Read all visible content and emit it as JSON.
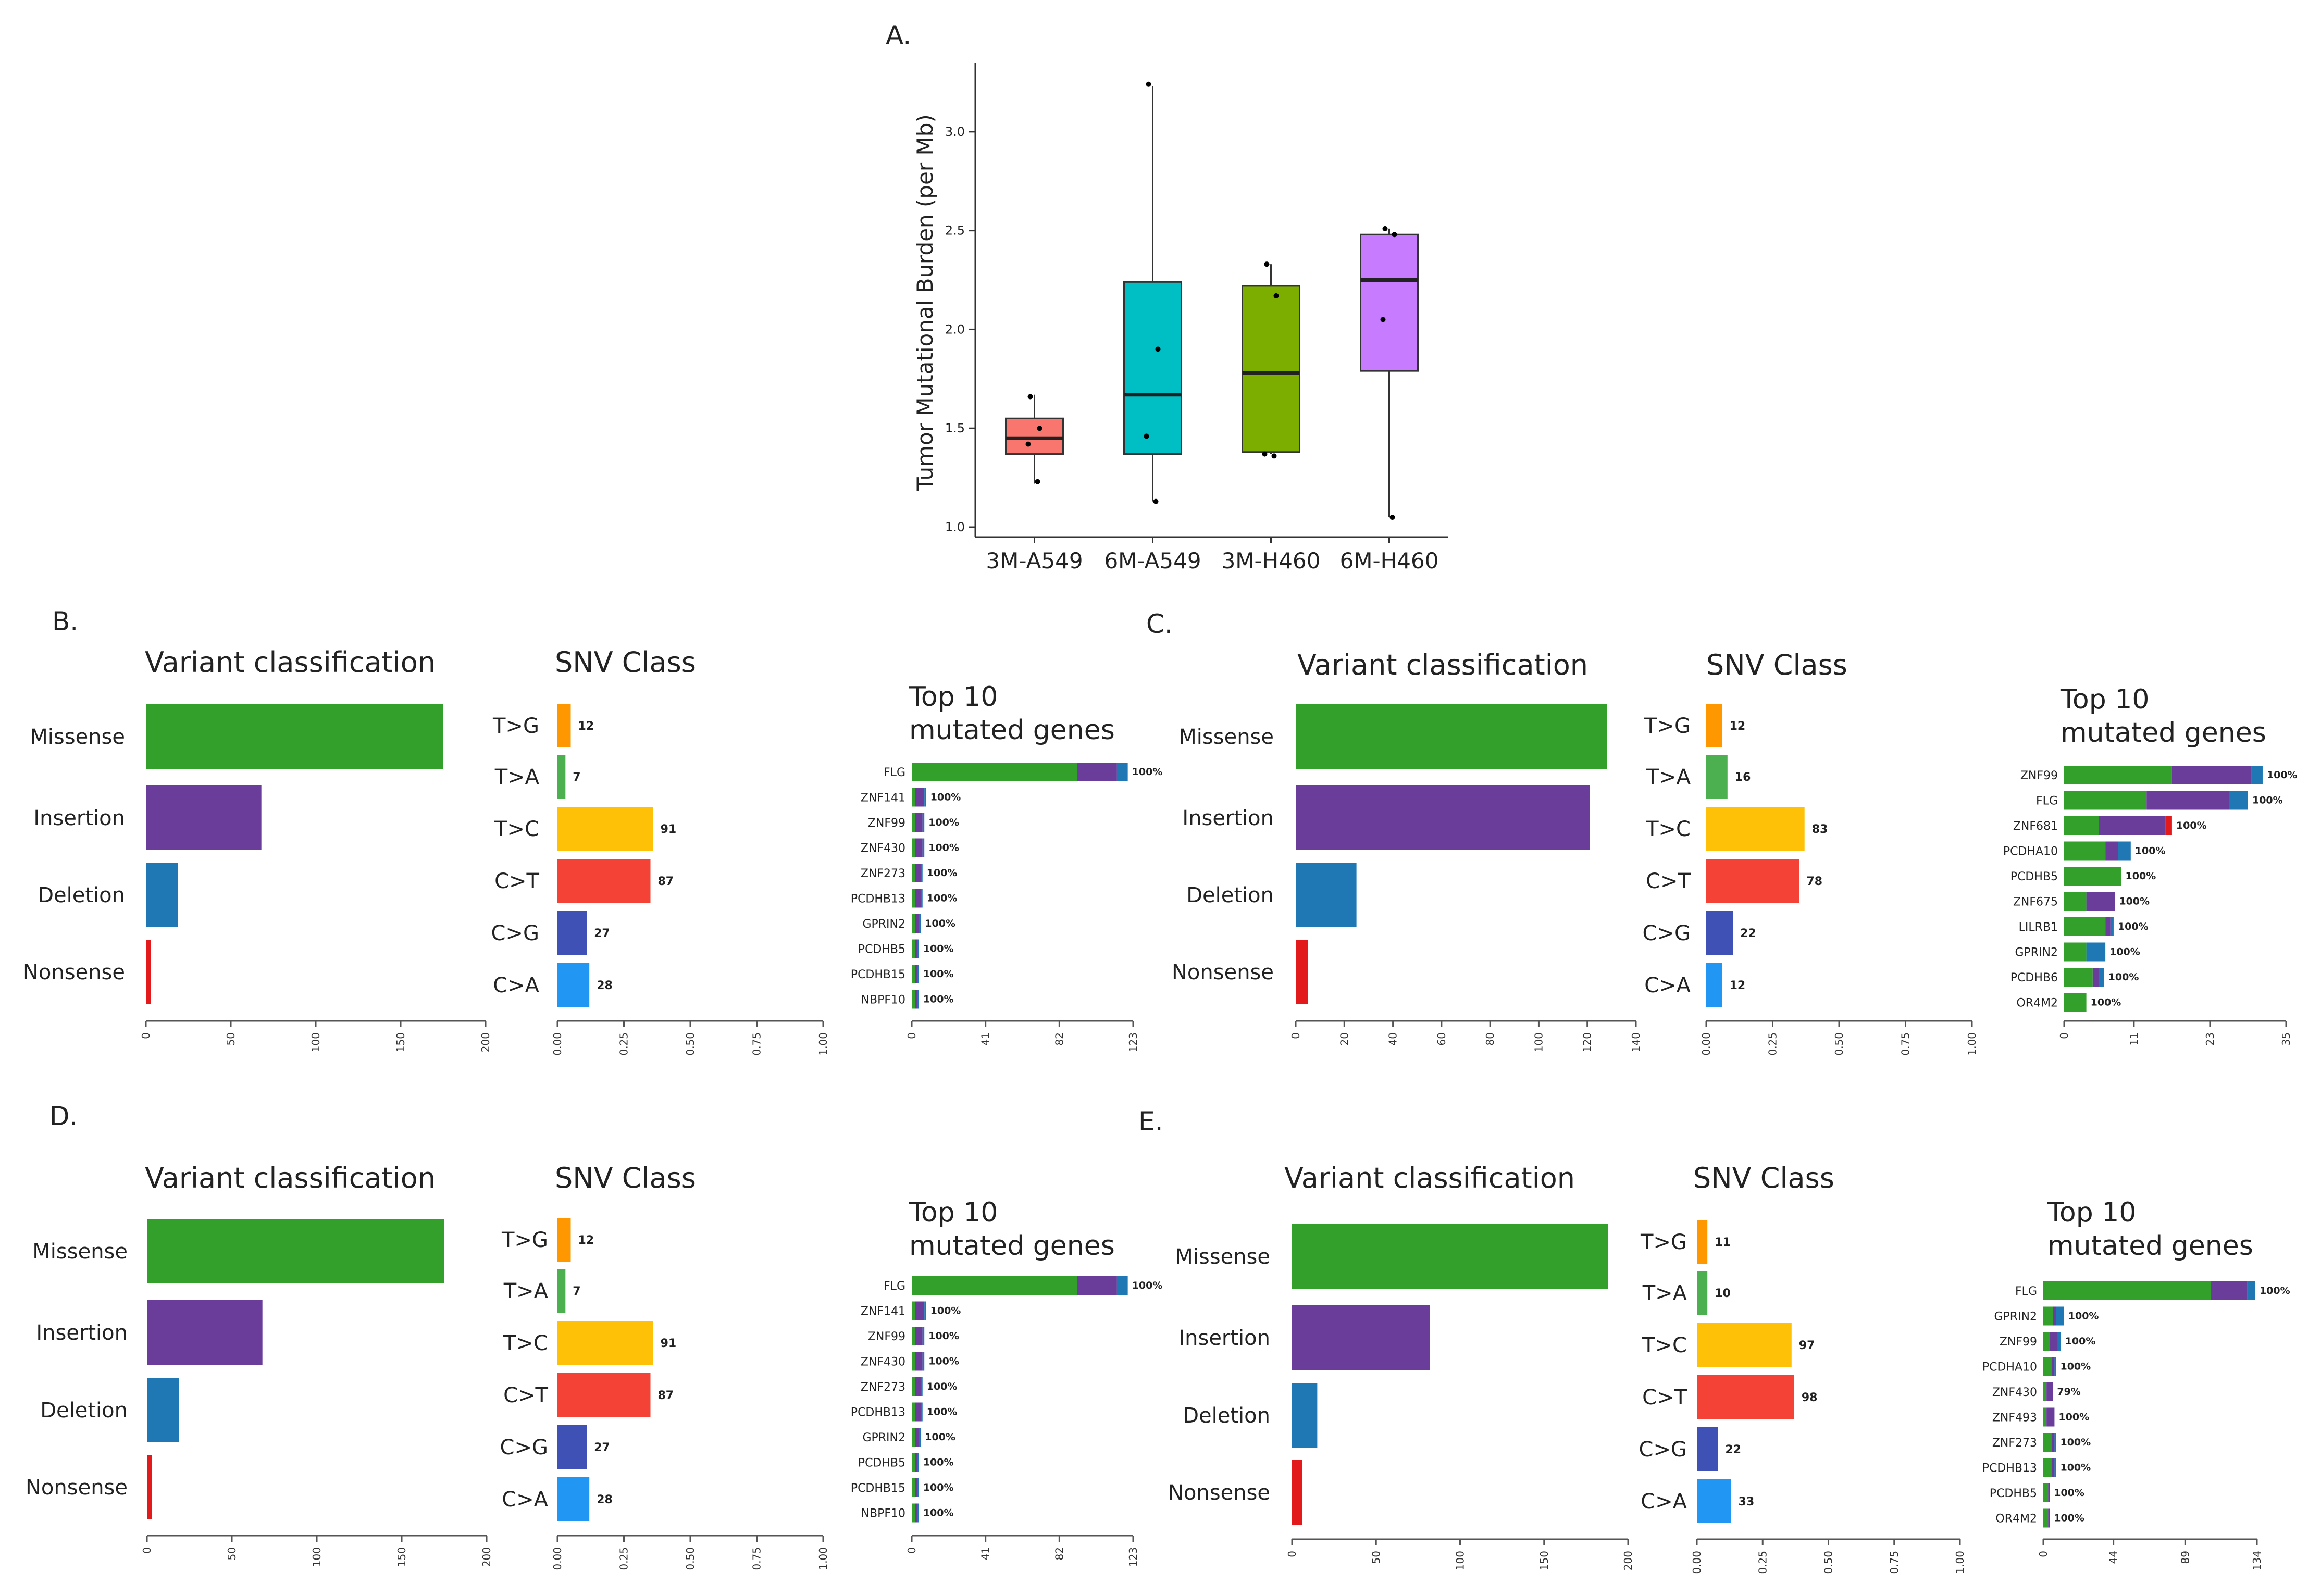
{
  "colors": {
    "missense": "#33a02c",
    "insertion": "#6a3d9a",
    "deletion": "#1f78b4",
    "nonsense": "#e31a1c",
    "tg": "#ff9800",
    "ta": "#4caf50",
    "tc": "#ffc107",
    "ct": "#f44336",
    "cg": "#3f51b5",
    "ca": "#2196f3",
    "box_3m_a549": "#f8766d",
    "box_6m_a549": "#00bfc4",
    "box_3m_h460": "#7cae00",
    "box_6m_h460": "#c77cff"
  },
  "chart_data": [
    {
      "type": "box",
      "panel_label": "A.",
      "ylabel": "Tumor Mutational Burden (per Mb)",
      "ylim": [
        0.95,
        3.35
      ],
      "yticks": [
        "1.0",
        "1.5",
        "2.0",
        "2.5",
        "3.0"
      ],
      "categories": [
        "3M-A549",
        "6M-A549",
        "3M-H460",
        "6M-H460"
      ],
      "boxes": [
        {
          "name": "3M-A549",
          "q1": 1.37,
          "median": 1.45,
          "q3": 1.55,
          "whisker_low": 1.22,
          "whisker_high": 1.67,
          "points": [
            1.66,
            1.5,
            1.42,
            1.23
          ]
        },
        {
          "name": "6M-A549",
          "q1": 1.37,
          "median": 1.67,
          "q3": 2.24,
          "whisker_low": 1.13,
          "whisker_high": 3.23,
          "points": [
            3.24,
            1.9,
            1.46,
            1.13
          ]
        },
        {
          "name": "3M-H460",
          "q1": 1.38,
          "median": 1.78,
          "q3": 2.22,
          "whisker_low": 1.37,
          "whisker_high": 2.33,
          "points": [
            2.33,
            2.17,
            1.37,
            1.36
          ]
        },
        {
          "name": "6M-H460",
          "q1": 1.79,
          "median": 2.25,
          "q3": 2.48,
          "whisker_low": 1.05,
          "whisker_high": 2.51,
          "points": [
            2.51,
            2.48,
            2.05,
            1.05
          ]
        }
      ]
    },
    {
      "panel_label": "B.",
      "variant": {
        "title": "Variant classification",
        "type": "bar",
        "categories": [
          "Missense",
          "Insertion",
          "Deletion",
          "Nonsense"
        ],
        "values": [
          175,
          68,
          19,
          3
        ],
        "xlim": [
          0,
          200
        ],
        "xticks": [
          "0",
          "50",
          "100",
          "150",
          "200"
        ]
      },
      "snv": {
        "title": "SNV Class",
        "type": "bar",
        "categories": [
          "T>G",
          "T>A",
          "T>C",
          "C>T",
          "C>G",
          "C>A"
        ],
        "fractions": [
          0.05,
          0.03,
          0.36,
          0.35,
          0.11,
          0.12
        ],
        "labels": [
          "12",
          "7",
          "91",
          "87",
          "27",
          "28"
        ],
        "xlim": [
          0,
          1
        ],
        "xticks": [
          "0.00",
          "0.25",
          "0.50",
          "0.75",
          "1.00"
        ]
      },
      "genes": {
        "title_line1": "Top 10",
        "title_line2": "mutated genes",
        "type": "bar",
        "categories": [
          "FLG",
          "ZNF141",
          "ZNF99",
          "ZNF430",
          "ZNF273",
          "PCDHB13",
          "GPRIN2",
          "PCDHB5",
          "PCDHB15",
          "NBPF10"
        ],
        "series": [
          {
            "values": [
              92,
              2,
              2,
              2,
              2,
              2,
              2,
              2,
              2,
              2
            ]
          },
          {
            "values": [
              22,
              5,
              4,
              4,
              3,
              3,
              2,
              1,
              1,
              1
            ]
          },
          {
            "values": [
              6,
              1,
              1,
              1,
              1,
              1,
              1,
              1,
              1,
              1
            ]
          }
        ],
        "labels": [
          "100%",
          "100%",
          "100%",
          "100%",
          "100%",
          "100%",
          "100%",
          "100%",
          "100%",
          "100%"
        ],
        "xlim": [
          0,
          123
        ],
        "xticks": [
          "0",
          "41",
          "82",
          "123"
        ]
      }
    },
    {
      "panel_label": "C.",
      "variant": {
        "title": "Variant classification",
        "type": "bar",
        "categories": [
          "Missense",
          "Insertion",
          "Deletion",
          "Nonsense"
        ],
        "values": [
          128,
          121,
          25,
          5
        ],
        "xlim": [
          0,
          140
        ],
        "xticks": [
          "0",
          "20",
          "40",
          "60",
          "80",
          "100",
          "120",
          "140"
        ]
      },
      "snv": {
        "title": "SNV Class",
        "type": "bar",
        "categories": [
          "T>G",
          "T>A",
          "T>C",
          "C>T",
          "C>G",
          "C>A"
        ],
        "fractions": [
          0.06,
          0.08,
          0.37,
          0.35,
          0.1,
          0.06
        ],
        "labels": [
          "12",
          "16",
          "83",
          "78",
          "22",
          "12"
        ],
        "xlim": [
          0,
          1
        ],
        "xticks": [
          "0.00",
          "0.25",
          "0.50",
          "0.75",
          "1.00"
        ]
      },
      "genes": {
        "title_line1": "Top 10",
        "title_line2": "mutated genes",
        "type": "bar",
        "categories": [
          "ZNF99",
          "FLG",
          "ZNF681",
          "PCDHA10",
          "PCDHB5",
          "ZNF675",
          "LILRB1",
          "GPRIN2",
          "PCDHB6",
          "OR4M2"
        ],
        "series": [
          {
            "values": [
              17.0,
              13.0,
              5.5,
              6.5,
              9.0,
              3.5,
              6.5,
              3.5,
              4.5,
              3.5
            ]
          },
          {
            "values": [
              12.5,
              13.0,
              10.5,
              2.0,
              0,
              4.5,
              0.8,
              0,
              1.0,
              0
            ]
          },
          {
            "values": [
              1.8,
              3.0,
              0,
              2.0,
              0,
              0,
              0.5,
              3.0,
              0.8,
              0
            ]
          },
          {
            "values": [
              0,
              0,
              1.0,
              0,
              0,
              0,
              0,
              0,
              0,
              0
            ]
          }
        ],
        "labels": [
          "100%",
          "100%",
          "100%",
          "100%",
          "100%",
          "100%",
          "100%",
          "100%",
          "100%",
          "100%"
        ],
        "xlim": [
          0,
          35
        ],
        "xticks": [
          "0",
          "11",
          "23",
          "35"
        ]
      }
    },
    {
      "panel_label": "D.",
      "variant": {
        "title": "Variant classification",
        "type": "bar",
        "categories": [
          "Missense",
          "Insertion",
          "Deletion",
          "Nonsense"
        ],
        "values": [
          175,
          68,
          19,
          3
        ],
        "xlim": [
          0,
          200
        ],
        "xticks": [
          "0",
          "50",
          "100",
          "150",
          "200"
        ]
      },
      "snv": {
        "title": "SNV Class",
        "type": "bar",
        "categories": [
          "T>G",
          "T>A",
          "T>C",
          "C>T",
          "C>G",
          "C>A"
        ],
        "fractions": [
          0.05,
          0.03,
          0.36,
          0.35,
          0.11,
          0.12
        ],
        "labels": [
          "12",
          "7",
          "91",
          "87",
          "27",
          "28"
        ],
        "xlim": [
          0,
          1
        ],
        "xticks": [
          "0.00",
          "0.25",
          "0.50",
          "0.75",
          "1.00"
        ]
      },
      "genes": {
        "title_line1": "Top 10",
        "title_line2": "mutated genes",
        "type": "bar",
        "categories": [
          "FLG",
          "ZNF141",
          "ZNF99",
          "ZNF430",
          "ZNF273",
          "PCDHB13",
          "GPRIN2",
          "PCDHB5",
          "PCDHB15",
          "NBPF10"
        ],
        "series": [
          {
            "values": [
              92,
              2,
              2,
              2,
              2,
              2,
              2,
              2,
              2,
              2
            ]
          },
          {
            "values": [
              22,
              5,
              4,
              4,
              3,
              3,
              2,
              1,
              1,
              1
            ]
          },
          {
            "values": [
              6,
              1,
              1,
              1,
              1,
              1,
              1,
              1,
              1,
              1
            ]
          }
        ],
        "labels": [
          "100%",
          "100%",
          "100%",
          "100%",
          "100%",
          "100%",
          "100%",
          "100%",
          "100%",
          "100%"
        ],
        "xlim": [
          0,
          123
        ],
        "xticks": [
          "0",
          "41",
          "82",
          "123"
        ]
      }
    },
    {
      "panel_label": "E.",
      "variant": {
        "title": "Variant classification",
        "type": "bar",
        "categories": [
          "Missense",
          "Insertion",
          "Deletion",
          "Nonsense"
        ],
        "values": [
          188,
          82,
          15,
          6
        ],
        "xlim": [
          0,
          200
        ],
        "xticks": [
          "0",
          "50",
          "100",
          "150",
          "200"
        ]
      },
      "snv": {
        "title": "SNV Class",
        "type": "bar",
        "categories": [
          "T>G",
          "T>A",
          "T>C",
          "C>T",
          "C>G",
          "C>A"
        ],
        "fractions": [
          0.04,
          0.04,
          0.36,
          0.37,
          0.08,
          0.13
        ],
        "labels": [
          "11",
          "10",
          "97",
          "98",
          "22",
          "33"
        ],
        "xlim": [
          0,
          1
        ],
        "xticks": [
          "0.00",
          "0.25",
          "0.50",
          "0.75",
          "1.00"
        ]
      },
      "genes": {
        "title_line1": "Top 10",
        "title_line2": "mutated genes",
        "type": "bar",
        "categories": [
          "FLG",
          "GPRIN2",
          "ZNF99",
          "PCDHA10",
          "ZNF430",
          "ZNF493",
          "ZNF273",
          "PCDHB13",
          "PCDHB5",
          "OR4M2"
        ],
        "series": [
          {
            "values": [
              105,
              6,
              4,
              5,
              2,
              2,
              5,
              5,
              3,
              3
            ]
          },
          {
            "values": [
              23,
              2,
              5,
              2,
              4,
              5,
              2,
              2,
              1,
              1
            ]
          },
          {
            "values": [
              5,
              5,
              2,
              1,
              0,
              0,
              1,
              1,
              0,
              0
            ]
          }
        ],
        "labels": [
          "100%",
          "100%",
          "100%",
          "100%",
          "79%",
          "100%",
          "100%",
          "100%",
          "100%",
          "100%"
        ],
        "xlim": [
          0,
          134
        ],
        "xticks": [
          "0",
          "44",
          "89",
          "134"
        ]
      }
    }
  ]
}
